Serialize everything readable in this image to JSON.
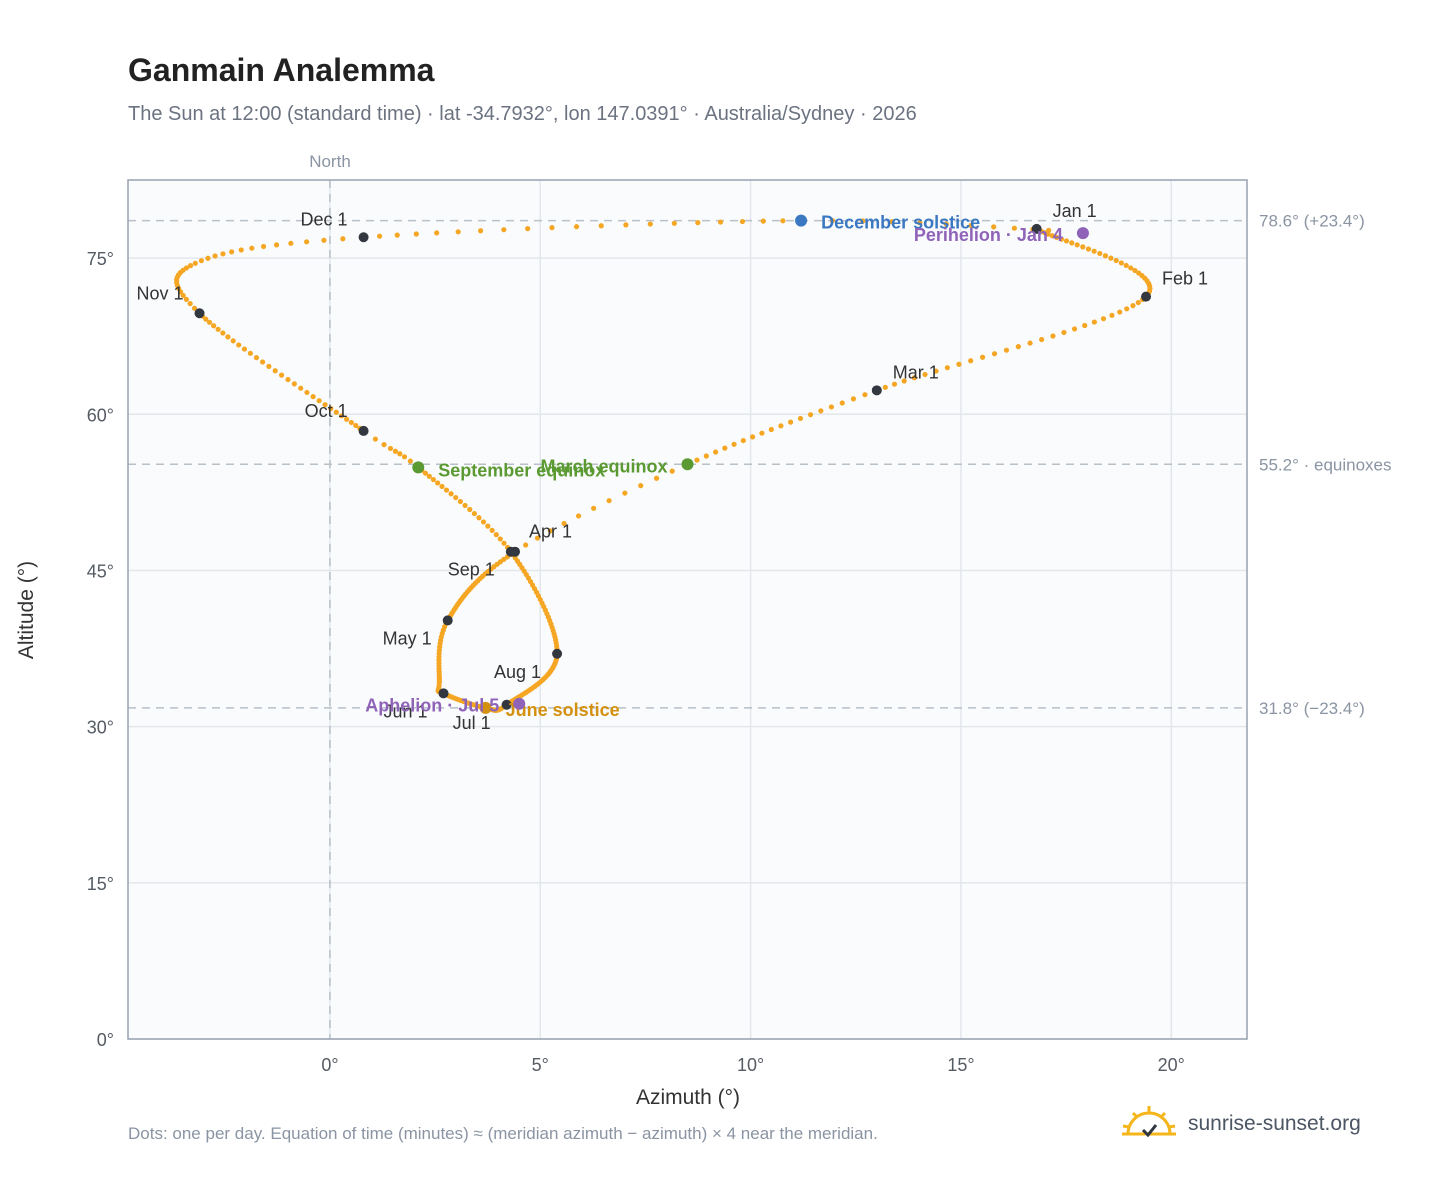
{
  "header": {
    "title": "Ganmain Analemma",
    "subtitle": "The Sun at 12:00 (standard time) · lat -34.7932°, lon 147.0391° · Australia/Sydney · 2026"
  },
  "footer": {
    "note": "Dots: one per day. Equation of time (minutes) ≈ (meridian azimuth − azimuth) × 4 near the meridian.",
    "brand": "sunrise-sunset.org"
  },
  "chart_data": {
    "type": "scatter",
    "xlabel": "Azimuth (°)",
    "ylabel": "Altitude (°)",
    "xlim": [
      -4.8,
      21.8
    ],
    "ylim": [
      0,
      82.5
    ],
    "xticks": [
      0,
      5,
      10,
      15,
      20
    ],
    "xtick_labels": [
      "0°",
      "5°",
      "10°",
      "15°",
      "20°"
    ],
    "yticks": [
      0,
      15,
      30,
      45,
      60,
      75
    ],
    "ytick_labels": [
      "0°",
      "15°",
      "30°",
      "45°",
      "60°",
      "75°"
    ],
    "grid": true,
    "meridian": {
      "x": 0,
      "label": "North"
    },
    "reference_lines": [
      {
        "y": 78.6,
        "label": "78.6° (+23.4°)"
      },
      {
        "y": 55.2,
        "label": "55.2° · equinoxes"
      },
      {
        "y": 31.8,
        "label": "31.8° (−23.4°)"
      }
    ],
    "colors": {
      "curve": "#f5a623",
      "month_marker": "#333840",
      "equinox": "#5b9a32",
      "december_solstice": "#3a78c2",
      "june_solstice": "#d4900f",
      "apsis": "#8e63b8",
      "grid": "#e3e7ec",
      "reference": "#b8c0c8",
      "plot_bg": "#fafbfd"
    },
    "keypoints": [
      {
        "doy": 0,
        "x": 16.8,
        "y": 77.8
      },
      {
        "doy": 31,
        "x": 19.4,
        "y": 71.3
      },
      {
        "doy": 59,
        "x": 13.0,
        "y": 62.3
      },
      {
        "doy": 78,
        "x": 8.5,
        "y": 55.2
      },
      {
        "doy": 90,
        "x": 4.4,
        "y": 46.8
      },
      {
        "doy": 120,
        "x": 2.8,
        "y": 40.2
      },
      {
        "doy": 141,
        "x": 2.6,
        "y": 34.2
      },
      {
        "doy": 151,
        "x": 2.7,
        "y": 33.2
      },
      {
        "doy": 171,
        "x": 3.7,
        "y": 31.8
      },
      {
        "doy": 181,
        "x": 4.2,
        "y": 32.1
      },
      {
        "doy": 212,
        "x": 5.4,
        "y": 37.0
      },
      {
        "doy": 243,
        "x": 4.3,
        "y": 46.8
      },
      {
        "doy": 265,
        "x": 2.1,
        "y": 54.9
      },
      {
        "doy": 273,
        "x": 0.8,
        "y": 58.4
      },
      {
        "doy": 304,
        "x": -3.1,
        "y": 69.7
      },
      {
        "doy": 320,
        "x": -3.2,
        "y": 74.5
      },
      {
        "doy": 334,
        "x": 0.8,
        "y": 77.0
      },
      {
        "doy": 354,
        "x": 11.2,
        "y": 78.6
      },
      {
        "doy": 365,
        "x": 17.4,
        "y": 77.6
      }
    ],
    "month_markers": [
      {
        "label": "Jan 1",
        "x": 16.8,
        "y": 77.8,
        "label_dx": 16,
        "label_dy": -12,
        "anchor": "start"
      },
      {
        "label": "Feb 1",
        "x": 19.4,
        "y": 71.3,
        "label_dx": 16,
        "label_dy": -12,
        "anchor": "start"
      },
      {
        "label": "Mar 1",
        "x": 13.0,
        "y": 62.3,
        "label_dx": 16,
        "label_dy": -12,
        "anchor": "start"
      },
      {
        "label": "Apr 1",
        "x": 4.4,
        "y": 46.8,
        "label_dx": 14,
        "label_dy": -14,
        "anchor": "start"
      },
      {
        "label": "May 1",
        "x": 2.8,
        "y": 40.2,
        "label_dx": -16,
        "label_dy": 24,
        "anchor": "end"
      },
      {
        "label": "Jun 1",
        "x": 2.7,
        "y": 33.2,
        "label_dx": -16,
        "label_dy": 24,
        "anchor": "end"
      },
      {
        "label": "Jul 1",
        "x": 4.2,
        "y": 32.1,
        "label_dx": -16,
        "label_dy": 24,
        "anchor": "end"
      },
      {
        "label": "Aug 1",
        "x": 5.4,
        "y": 37.0,
        "label_dx": -16,
        "label_dy": 24,
        "anchor": "end"
      },
      {
        "label": "Sep 1",
        "x": 4.3,
        "y": 46.8,
        "label_dx": -16,
        "label_dy": 24,
        "anchor": "end"
      },
      {
        "label": "Oct 1",
        "x": 0.8,
        "y": 58.4,
        "label_dx": -16,
        "label_dy": -14,
        "anchor": "end"
      },
      {
        "label": "Nov 1",
        "x": -3.1,
        "y": 69.7,
        "label_dx": -16,
        "label_dy": -14,
        "anchor": "end"
      },
      {
        "label": "Dec 1",
        "x": 0.8,
        "y": 77.0,
        "label_dx": -16,
        "label_dy": -12,
        "anchor": "end"
      }
    ],
    "events": [
      {
        "label": "March equinox",
        "x": 8.5,
        "y": 55.2,
        "color": "#5b9a32",
        "label_dx": -20,
        "label_dy": 8,
        "anchor": "end"
      },
      {
        "label": "September equinox",
        "x": 2.1,
        "y": 54.9,
        "color": "#5b9a32",
        "label_dx": 20,
        "label_dy": 9,
        "anchor": "start"
      },
      {
        "label": "December solstice",
        "x": 11.2,
        "y": 78.6,
        "color": "#3a78c2",
        "label_dx": 20,
        "label_dy": 8,
        "anchor": "start"
      },
      {
        "label": "June solstice",
        "x": 3.7,
        "y": 31.8,
        "color": "#d4900f",
        "label_dx": 20,
        "label_dy": 8,
        "anchor": "start"
      },
      {
        "label": "Perihelion · Jan 4",
        "x": 17.9,
        "y": 77.4,
        "color": "#8e63b8",
        "label_dx": -20,
        "label_dy": 8,
        "anchor": "end"
      },
      {
        "label": "Aphelion · Jul 5",
        "x": 4.5,
        "y": 32.2,
        "color": "#8e63b8",
        "label_dx": -20,
        "label_dy": 8,
        "anchor": "end"
      }
    ]
  }
}
